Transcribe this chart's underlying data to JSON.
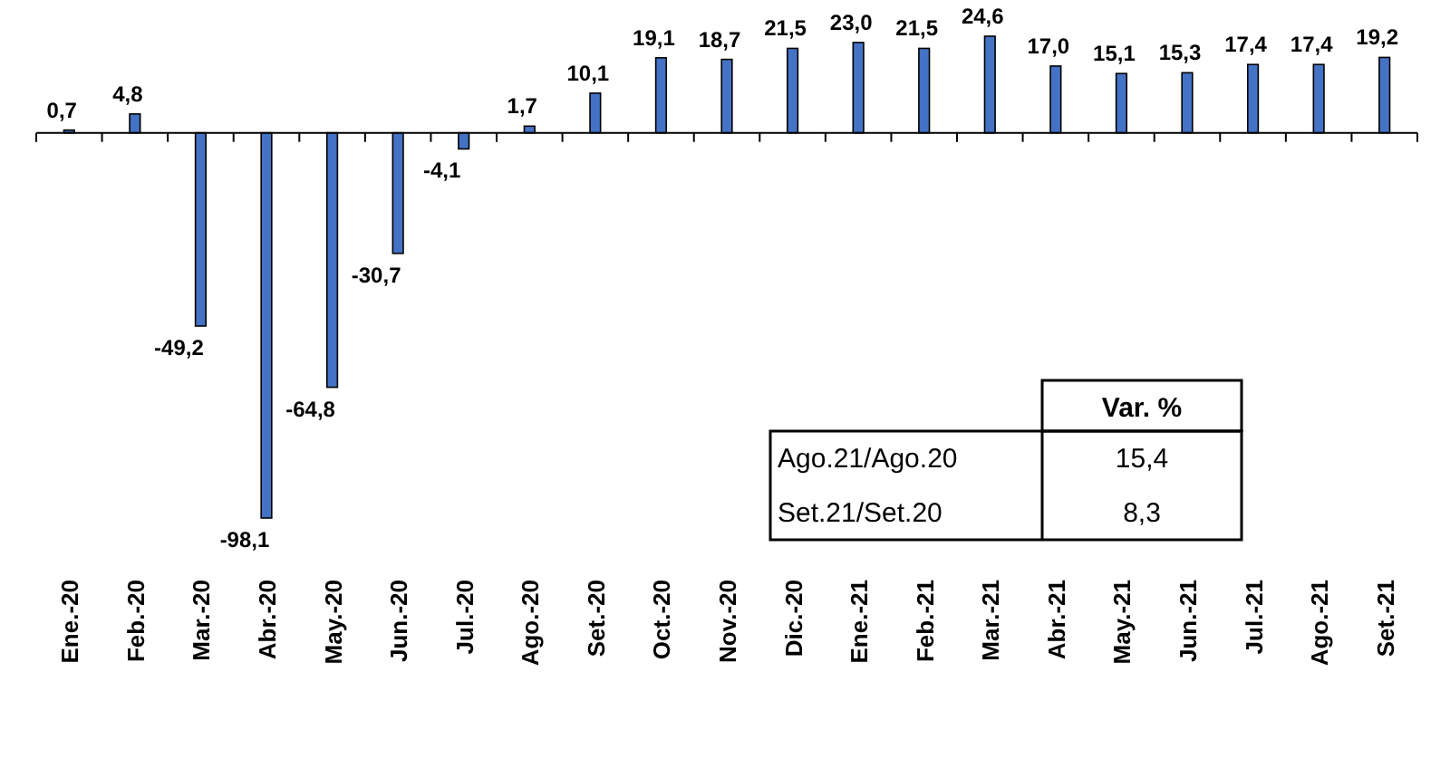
{
  "chart_data": {
    "type": "bar",
    "categories": [
      "Ene.-20",
      "Feb.-20",
      "Mar.-20",
      "Abr.-20",
      "May.-20",
      "Jun.-20",
      "Jul.-20",
      "Ago.-20",
      "Set.-20",
      "Oct.-20",
      "Nov.-20",
      "Dic.-20",
      "Ene.-21",
      "Feb.-21",
      "Mar.-21",
      "Abr.-21",
      "May.-21",
      "Jun.-21",
      "Jul.-21",
      "Ago.-21",
      "Set.-21"
    ],
    "values": [
      0.7,
      4.8,
      -49.2,
      -98.1,
      -64.8,
      -30.7,
      -4.1,
      1.7,
      10.1,
      19.1,
      18.7,
      21.5,
      23.0,
      21.5,
      24.6,
      17.0,
      15.1,
      15.3,
      17.4,
      17.4,
      19.2
    ],
    "value_labels": [
      "0,7",
      "4,8",
      "-49,2",
      "-98,1",
      "-64,8",
      "-30,7",
      "-4,1",
      "1,7",
      "10,1",
      "19,1",
      "18,7",
      "21,5",
      "23,0",
      "21,5",
      "24,6",
      "17,0",
      "15,1",
      "15,3",
      "17,4",
      "17,4",
      "19,2"
    ],
    "color": "#4472c4",
    "annotations": [
      "Var. %",
      "Ago.21/Ago.20",
      "15,4",
      "Set.21/Set.20",
      "8,3"
    ]
  }
}
